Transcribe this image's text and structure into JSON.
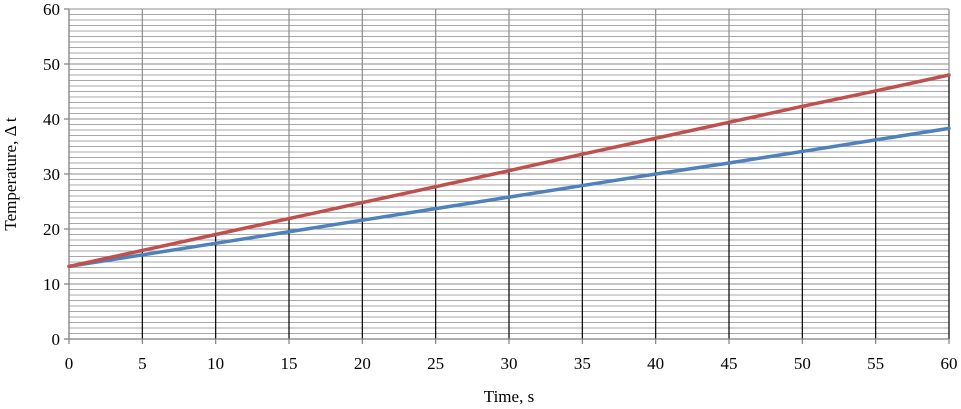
{
  "chart_data": {
    "type": "line",
    "xlabel": "Time, s",
    "ylabel": "Temperature,  Δ t",
    "xlim": [
      0,
      60
    ],
    "ylim": [
      0,
      60
    ],
    "x_ticks": [
      0,
      5,
      10,
      15,
      20,
      25,
      30,
      35,
      40,
      45,
      50,
      55,
      60
    ],
    "y_ticks": [
      0,
      10,
      20,
      30,
      40,
      50,
      60
    ],
    "y_minor_step": 1,
    "grid": true,
    "legend": "none",
    "x": [
      0,
      5,
      10,
      15,
      20,
      25,
      30,
      35,
      40,
      45,
      50,
      55,
      60
    ],
    "series": [
      {
        "color": "#4f81bd",
        "values": [
          13.2,
          15.3,
          17.4,
          19.5,
          21.6,
          23.7,
          25.8,
          27.9,
          30.0,
          32.0,
          34.1,
          36.2,
          38.3
        ]
      },
      {
        "color": "#c0504d",
        "values": [
          13.2,
          16.1,
          19.0,
          21.9,
          24.8,
          27.7,
          30.6,
          33.6,
          36.5,
          39.4,
          42.3,
          45.1,
          48.0
        ]
      }
    ]
  }
}
